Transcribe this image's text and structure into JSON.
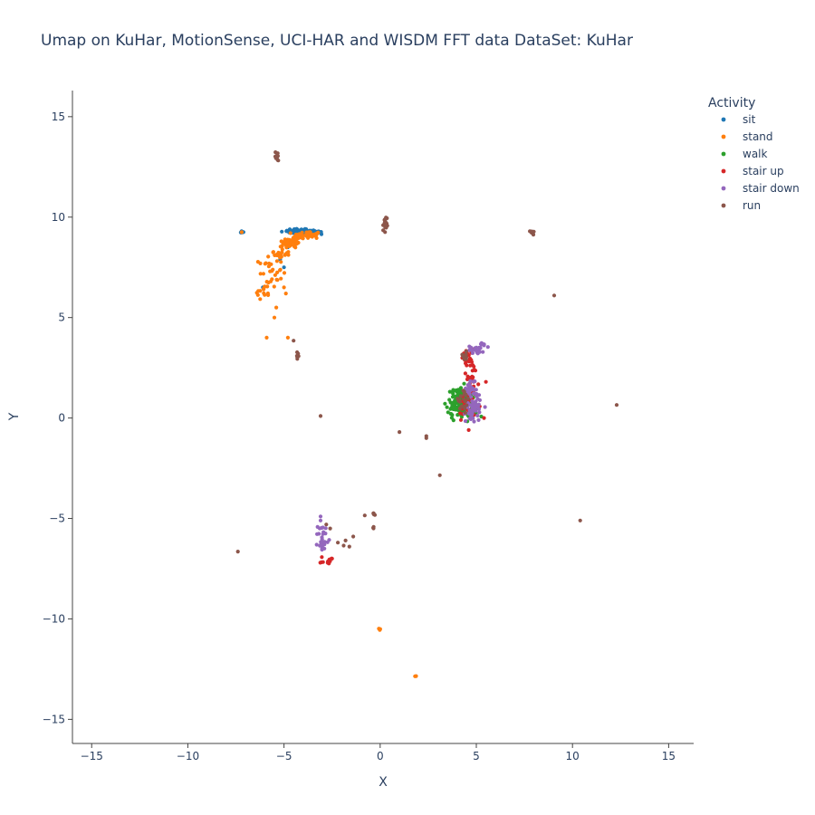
{
  "chart_data": {
    "type": "scatter",
    "title": "Umap on KuHar, MotionSense, UCI-HAR and WISDM   FFT data   DataSet: KuHar",
    "xlabel": "X",
    "ylabel": "Y",
    "xlim": [
      -16,
      16.3
    ],
    "ylim": [
      -16.2,
      16.3
    ],
    "xticks": [
      -15,
      -10,
      -5,
      0,
      5,
      10,
      15
    ],
    "yticks": [
      -15,
      -10,
      -5,
      0,
      5,
      10,
      15
    ],
    "xtick_labels": [
      "−15",
      "−10",
      "−5",
      "0",
      "5",
      "10",
      "15"
    ],
    "ytick_labels": [
      "−15",
      "−10",
      "−5",
      "0",
      "5",
      "10",
      "15"
    ],
    "grid": false,
    "legend": {
      "title": "Activity",
      "placement": "top-right"
    },
    "series": [
      {
        "name": "sit",
        "color": "#1f77b4",
        "clusters": [
          {
            "cx": -4.3,
            "cy": 9.3,
            "sx": 0.3,
            "sy": 0.07,
            "n": 60
          },
          {
            "cx": -3.7,
            "cy": 9.25,
            "sx": 0.35,
            "sy": 0.06,
            "n": 50
          },
          {
            "cx": -7.2,
            "cy": 9.25,
            "sx": 0.04,
            "sy": 0.03,
            "n": 6
          }
        ],
        "x": [
          -5.2,
          -5.0,
          -4.8,
          -3.05,
          -6.1,
          -4.7
        ],
        "y": [
          7.9,
          7.5,
          8.5,
          9.15,
          6.5,
          8.8
        ]
      },
      {
        "name": "stand",
        "color": "#ff7f0e",
        "clusters": [
          {
            "cx": -4.6,
            "cy": 8.75,
            "sx": 0.25,
            "sy": 0.15,
            "n": 50
          },
          {
            "cx": -3.8,
            "cy": 9.1,
            "sx": 0.35,
            "sy": 0.1,
            "n": 50
          },
          {
            "cx": -5.2,
            "cy": 8.2,
            "sx": 0.25,
            "sy": 0.2,
            "n": 25
          },
          {
            "cx": -5.7,
            "cy": 7.3,
            "sx": 0.3,
            "sy": 0.4,
            "n": 25
          },
          {
            "cx": -6.0,
            "cy": 6.3,
            "sx": 0.2,
            "sy": 0.5,
            "n": 15
          },
          {
            "cx": 0.0,
            "cy": -10.5,
            "sx": 0.03,
            "sy": 0.03,
            "n": 4
          },
          {
            "cx": 1.85,
            "cy": -12.85,
            "sx": 0.02,
            "sy": 0.02,
            "n": 2
          }
        ],
        "x": [
          -5.9,
          -4.8,
          -5.5,
          -5.4,
          -5.0,
          -4.9,
          -7.2
        ],
        "y": [
          4.0,
          4.0,
          5.0,
          5.5,
          6.5,
          6.2,
          9.25
        ]
      },
      {
        "name": "walk",
        "color": "#2ca02c",
        "clusters": [
          {
            "cx": 4.0,
            "cy": 0.7,
            "sx": 0.25,
            "sy": 0.35,
            "n": 70
          },
          {
            "cx": 4.4,
            "cy": 0.95,
            "sx": 0.3,
            "sy": 0.3,
            "n": 50
          },
          {
            "cx": 4.7,
            "cy": 0.3,
            "sx": 0.2,
            "sy": 0.2,
            "n": 25
          }
        ],
        "x": [
          3.8,
          4.2,
          3.7
        ],
        "y": [
          1.4,
          1.5,
          0.2
        ]
      },
      {
        "name": "stair up",
        "color": "#d62728",
        "clusters": [
          {
            "cx": 4.55,
            "cy": 3.1,
            "sx": 0.12,
            "sy": 0.15,
            "n": 20
          },
          {
            "cx": 4.75,
            "cy": 1.8,
            "sx": 0.2,
            "sy": 0.55,
            "n": 40
          },
          {
            "cx": 4.6,
            "cy": 0.5,
            "sx": 0.3,
            "sy": 0.4,
            "n": 25
          },
          {
            "cx": -2.7,
            "cy": -7.1,
            "sx": 0.2,
            "sy": 0.1,
            "n": 12
          }
        ],
        "x": [
          5.5,
          5.4,
          4.3,
          4.2,
          -2.5
        ],
        "y": [
          1.8,
          0.0,
          0.2,
          -0.1,
          -7.0
        ]
      },
      {
        "name": "stair down",
        "color": "#9467bd",
        "clusters": [
          {
            "cx": 5.0,
            "cy": 3.4,
            "sx": 0.2,
            "sy": 0.1,
            "n": 20
          },
          {
            "cx": 5.3,
            "cy": 3.65,
            "sx": 0.05,
            "sy": 0.04,
            "n": 8
          },
          {
            "cx": 4.85,
            "cy": 0.6,
            "sx": 0.2,
            "sy": 0.4,
            "n": 50
          },
          {
            "cx": 4.75,
            "cy": 1.5,
            "sx": 0.15,
            "sy": 0.3,
            "n": 20
          },
          {
            "cx": -3.0,
            "cy": -6.0,
            "sx": 0.12,
            "sy": 0.35,
            "n": 25
          }
        ],
        "x": [
          -3.1,
          -3.1,
          -2.9
        ],
        "y": [
          -4.9,
          -5.1,
          -6.5
        ]
      },
      {
        "name": "run",
        "color": "#8c564b",
        "clusters": [
          {
            "cx": -5.35,
            "cy": 13.05,
            "sx": 0.05,
            "sy": 0.12,
            "n": 12
          },
          {
            "cx": 0.25,
            "cy": 9.55,
            "sx": 0.05,
            "sy": 0.25,
            "n": 25
          },
          {
            "cx": 7.9,
            "cy": 9.25,
            "sx": 0.05,
            "sy": 0.04,
            "n": 8
          },
          {
            "cx": -4.3,
            "cy": 3.1,
            "sx": 0.04,
            "sy": 0.12,
            "n": 8
          },
          {
            "cx": 4.3,
            "cy": 0.8,
            "sx": 0.25,
            "sy": 0.35,
            "n": 18
          },
          {
            "cx": 4.4,
            "cy": 3.1,
            "sx": 0.1,
            "sy": 0.1,
            "n": 8
          },
          {
            "cx": -0.3,
            "cy": -4.8,
            "sx": 0.08,
            "sy": 0.03,
            "n": 5
          },
          {
            "cx": -0.35,
            "cy": -5.45,
            "sx": 0.02,
            "sy": 0.06,
            "n": 3
          }
        ],
        "x": [
          9.05,
          12.3,
          -3.1,
          1.0,
          2.4,
          2.4,
          3.1,
          -0.8,
          -2.8,
          -2.6,
          -1.8,
          -1.6,
          -1.4,
          -1.9,
          -2.2,
          -7.4,
          10.4,
          -4.5
        ],
        "y": [
          6.1,
          0.65,
          0.1,
          -0.7,
          -0.9,
          -1.0,
          -2.85,
          -4.85,
          -5.3,
          -5.5,
          -6.1,
          -6.4,
          -5.9,
          -6.35,
          -6.2,
          -6.65,
          -5.1,
          3.85
        ]
      }
    ]
  }
}
